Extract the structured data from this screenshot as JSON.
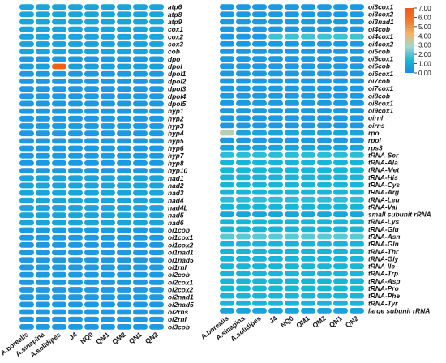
{
  "chart_data": [
    {
      "type": "heatmap",
      "columns": [
        "A.borealis",
        "A.sinapina",
        "A.solidipes",
        "J4",
        "NQ0",
        "QM1",
        "QM2",
        "QN1",
        "QN2"
      ],
      "rows": [
        "atp6",
        "atp8",
        "atp9",
        "cox1",
        "cox2",
        "cox3",
        "cob",
        "dpo",
        "dpol",
        "dpol1",
        "dpol2",
        "dpol3",
        "dpol4",
        "dpol5",
        "hyp1",
        "hyp2",
        "hyp3",
        "hyp4",
        "hyp5",
        "hyp6",
        "hyp7",
        "hyp8",
        "hyp10",
        "nad1",
        "nad2",
        "nad3",
        "nad4",
        "nad4L",
        "nad5",
        "nad6",
        "oi1cob",
        "oi1cox1",
        "oi1cox2",
        "oi1nad1",
        "oi1nad5",
        "oi1rnl",
        "oi2cob",
        "oi2cox1",
        "oi2cox2",
        "oi2nad1",
        "oi2nad5",
        "oi2rns",
        "oi2rnl",
        "oi3cob"
      ],
      "values": [
        [
          0.8,
          0.8,
          0.8,
          0.8,
          0.8,
          0.8,
          0.8,
          0.8,
          0.8
        ],
        [
          0.8,
          0.8,
          0.8,
          0.8,
          0.8,
          0.8,
          0.8,
          0.8,
          0.8
        ],
        [
          0.8,
          0.8,
          0.8,
          0.8,
          0.8,
          0.8,
          0.8,
          0.8,
          0.8
        ],
        [
          0.8,
          0.8,
          0.8,
          0.8,
          0.8,
          0.8,
          0.8,
          0.8,
          0.8
        ],
        [
          0.8,
          0.8,
          0.8,
          0.8,
          0.8,
          0.8,
          0.8,
          0.8,
          0.8
        ],
        [
          0.8,
          0.8,
          0.8,
          0.8,
          0.8,
          0.8,
          0.8,
          0.8,
          0.8
        ],
        [
          0.8,
          0.8,
          0.8,
          0.8,
          0.8,
          0.8,
          0.8,
          0.8,
          0.8
        ],
        [
          0.5,
          0.5,
          0.5,
          0.5,
          0.5,
          0.5,
          0.5,
          0.5,
          0.5
        ],
        [
          0.6,
          0.6,
          6.8,
          0.6,
          0.6,
          0.6,
          0.6,
          0.6,
          0.6
        ],
        [
          0.5,
          0.5,
          0.5,
          0.5,
          0.5,
          0.5,
          0.5,
          0.5,
          0.5
        ],
        [
          0.5,
          0.5,
          0.5,
          0.5,
          0.5,
          0.5,
          0.5,
          0.5,
          0.5
        ],
        [
          0.5,
          0.5,
          0.5,
          0.5,
          0.5,
          0.5,
          0.5,
          0.5,
          0.5
        ],
        [
          0.5,
          0.5,
          0.5,
          0.5,
          0.5,
          0.5,
          0.5,
          0.5,
          0.5
        ],
        [
          0.5,
          0.5,
          0.5,
          0.5,
          0.5,
          0.5,
          0.5,
          0.5,
          0.5
        ],
        [
          0.5,
          0.5,
          0.5,
          0.5,
          0.5,
          0.5,
          0.5,
          0.5,
          0.5
        ],
        [
          0.5,
          0.5,
          0.5,
          0.5,
          0.5,
          0.5,
          0.5,
          0.5,
          0.5
        ],
        [
          0.5,
          0.5,
          0.5,
          0.5,
          0.5,
          0.5,
          0.5,
          0.5,
          0.5
        ],
        [
          0.5,
          0.5,
          0.5,
          0.5,
          0.5,
          0.5,
          0.5,
          0.5,
          0.5
        ],
        [
          0.5,
          0.5,
          0.5,
          0.5,
          0.5,
          0.5,
          0.5,
          0.5,
          0.5
        ],
        [
          0.5,
          0.5,
          0.5,
          0.5,
          0.5,
          0.5,
          0.5,
          0.5,
          0.5
        ],
        [
          0.5,
          0.5,
          0.5,
          0.5,
          0.5,
          0.5,
          0.5,
          0.5,
          0.5
        ],
        [
          0.5,
          0.5,
          0.5,
          0.5,
          0.5,
          0.5,
          0.5,
          0.5,
          0.5
        ],
        [
          0.5,
          0.5,
          0.5,
          0.5,
          0.5,
          0.5,
          0.5,
          0.5,
          0.5
        ],
        [
          0.8,
          0.8,
          0.8,
          0.8,
          0.8,
          0.8,
          0.8,
          0.8,
          0.8
        ],
        [
          0.8,
          0.8,
          0.8,
          0.8,
          0.8,
          0.8,
          0.8,
          0.8,
          0.8
        ],
        [
          0.8,
          0.8,
          0.8,
          0.8,
          0.8,
          0.8,
          0.8,
          0.8,
          0.8
        ],
        [
          0.8,
          0.8,
          0.8,
          0.8,
          0.8,
          0.8,
          0.8,
          0.8,
          0.8
        ],
        [
          0.8,
          0.8,
          0.8,
          0.8,
          0.8,
          0.8,
          0.8,
          0.8,
          0.8
        ],
        [
          0.8,
          0.8,
          0.8,
          0.8,
          0.8,
          0.8,
          0.8,
          0.8,
          0.8
        ],
        [
          0.8,
          0.8,
          0.8,
          0.8,
          0.8,
          0.8,
          0.8,
          0.8,
          0.8
        ],
        [
          0.5,
          0.5,
          0.5,
          0.5,
          0.5,
          0.5,
          0.5,
          0.5,
          0.5
        ],
        [
          0.5,
          0.5,
          0.5,
          0.5,
          0.5,
          0.5,
          0.5,
          0.5,
          0.5
        ],
        [
          0.5,
          0.5,
          0.5,
          0.5,
          0.5,
          0.5,
          0.5,
          0.5,
          0.5
        ],
        [
          0.5,
          0.5,
          0.5,
          0.5,
          0.5,
          0.5,
          0.5,
          0.5,
          0.5
        ],
        [
          0.5,
          0.5,
          0.5,
          0.5,
          0.5,
          0.5,
          0.5,
          0.5,
          0.5
        ],
        [
          0.5,
          0.5,
          0.5,
          0.5,
          0.5,
          0.5,
          0.5,
          0.5,
          0.5
        ],
        [
          0.5,
          0.5,
          0.5,
          0.5,
          0.5,
          0.5,
          0.5,
          0.5,
          0.5
        ],
        [
          0.5,
          0.5,
          0.5,
          0.5,
          0.5,
          0.5,
          0.5,
          0.5,
          0.5
        ],
        [
          0.5,
          0.5,
          0.5,
          0.5,
          0.5,
          0.5,
          0.5,
          0.5,
          0.5
        ],
        [
          0.5,
          0.5,
          0.5,
          0.5,
          0.5,
          0.5,
          0.5,
          0.5,
          0.5
        ],
        [
          0.5,
          0.5,
          0.5,
          0.5,
          0.5,
          0.5,
          0.5,
          0.5,
          0.5
        ],
        [
          0.5,
          0.5,
          0.5,
          0.5,
          0.5,
          0.5,
          0.5,
          0.5,
          0.5
        ],
        [
          0.5,
          0.5,
          0.5,
          0.5,
          0.5,
          0.5,
          0.5,
          0.5,
          0.5
        ],
        [
          0.5,
          0.5,
          0.5,
          0.5,
          0.5,
          0.5,
          0.5,
          0.5,
          0.5
        ]
      ]
    },
    {
      "type": "heatmap",
      "columns": [
        "A.borealis",
        "A.sinapina",
        "A.solidipes",
        "J4",
        "NQ0",
        "QM1",
        "QM2",
        "QN1",
        "QN2"
      ],
      "rows": [
        "oi3cox1",
        "oi3cox2",
        "oi3nad1",
        "oi4cob",
        "oi4cox1",
        "oi4cox2",
        "oi5cob",
        "oi5cox1",
        "oi6cob",
        "oi6cox1",
        "oi7cob",
        "oi7cox1",
        "oi8cob",
        "oi8cox1",
        "oi9cox1",
        "oirnl",
        "oirns",
        "rpo",
        "rpol",
        "rps3",
        "tRNA-Ser",
        "tRNA-Ala",
        "tRNA-Met",
        "tRNA-His",
        "tRNA-Cys",
        "tRNA-Arg",
        "tRNA-Leu",
        "tRNA-Val",
        "small subunit rRNA",
        "tRNA-Lys",
        "tRNA-Glu",
        "tRNA-Asn",
        "tRNA-Gln",
        "tRNA-Thr",
        "tRNA-Gly",
        "tRNA-Ile",
        "tRNA-Trp",
        "tRNA-Asp",
        "tRNA-Pro",
        "tRNA-Phe",
        "tRNA-Tyr",
        "large subunit rRNA"
      ],
      "values": [
        [
          0.5,
          0.5,
          0.5,
          0.5,
          0.5,
          0.5,
          0.5,
          0.5,
          0.5
        ],
        [
          0.5,
          0.5,
          0.5,
          0.5,
          0.5,
          0.5,
          0.5,
          0.5,
          0.5
        ],
        [
          0.5,
          0.5,
          0.5,
          0.5,
          0.5,
          0.5,
          0.5,
          0.5,
          0.5
        ],
        [
          0.5,
          0.5,
          0.5,
          0.5,
          0.5,
          0.5,
          0.5,
          0.5,
          0.5
        ],
        [
          0.5,
          0.5,
          0.5,
          1.8,
          1.8,
          1.8,
          1.8,
          1.8,
          1.8
        ],
        [
          0.5,
          0.5,
          0.5,
          0.5,
          0.5,
          0.5,
          0.5,
          0.5,
          0.5
        ],
        [
          0.5,
          0.5,
          0.5,
          0.5,
          0.5,
          0.5,
          0.5,
          0.5,
          0.5
        ],
        [
          0.5,
          0.5,
          0.5,
          0.5,
          0.5,
          0.5,
          0.5,
          0.5,
          0.5
        ],
        [
          0.5,
          0.5,
          0.5,
          0.5,
          0.5,
          0.5,
          0.5,
          0.5,
          0.5
        ],
        [
          0.5,
          0.5,
          0.5,
          0.5,
          0.5,
          0.5,
          0.5,
          0.5,
          0.5
        ],
        [
          0.5,
          0.5,
          0.5,
          0.5,
          0.5,
          0.5,
          0.5,
          0.5,
          0.5
        ],
        [
          0.5,
          0.5,
          0.5,
          0.5,
          0.5,
          0.5,
          0.5,
          0.5,
          0.5
        ],
        [
          0.5,
          0.5,
          0.5,
          0.5,
          0.5,
          0.5,
          0.5,
          0.5,
          0.5
        ],
        [
          0.5,
          0.5,
          0.5,
          0.5,
          0.5,
          0.5,
          0.5,
          0.5,
          0.5
        ],
        [
          0.5,
          0.5,
          0.5,
          0.5,
          0.5,
          0.5,
          0.5,
          0.5,
          0.5
        ],
        [
          0.5,
          0.5,
          0.5,
          0.5,
          0.5,
          0.5,
          0.5,
          0.5,
          0.5
        ],
        [
          0.5,
          0.5,
          0.5,
          0.5,
          0.5,
          0.5,
          0.5,
          0.5,
          0.5
        ],
        [
          3.2,
          0.8,
          0.8,
          0.8,
          0.8,
          0.8,
          0.8,
          0.8,
          0.8
        ],
        [
          0.5,
          0.5,
          0.5,
          0.5,
          0.5,
          0.5,
          0.5,
          0.5,
          0.5
        ],
        [
          0.8,
          0.8,
          0.8,
          0.8,
          0.8,
          0.8,
          0.8,
          0.8,
          0.8
        ],
        [
          1.6,
          1.6,
          1.6,
          1.6,
          1.6,
          1.6,
          1.6,
          1.6,
          1.6
        ],
        [
          1.3,
          1.3,
          1.3,
          1.3,
          1.3,
          1.3,
          1.3,
          1.3,
          1.3
        ],
        [
          1.3,
          1.3,
          1.3,
          1.3,
          1.3,
          1.3,
          1.3,
          1.3,
          1.3
        ],
        [
          1.3,
          1.3,
          1.3,
          1.3,
          1.3,
          1.3,
          1.3,
          1.3,
          1.3
        ],
        [
          1.3,
          1.3,
          1.3,
          1.3,
          1.3,
          1.3,
          1.3,
          1.3,
          1.3
        ],
        [
          1.3,
          1.3,
          1.3,
          1.3,
          1.3,
          1.3,
          1.3,
          1.3,
          1.3
        ],
        [
          1.6,
          1.6,
          1.6,
          1.6,
          1.6,
          1.6,
          1.6,
          1.6,
          1.6
        ],
        [
          1.3,
          1.3,
          1.3,
          1.3,
          1.3,
          1.3,
          1.3,
          1.3,
          1.3
        ],
        [
          0.8,
          0.8,
          0.8,
          0.8,
          0.8,
          0.8,
          0.8,
          0.8,
          0.8
        ],
        [
          1.3,
          1.3,
          1.3,
          1.3,
          1.3,
          1.3,
          1.3,
          1.3,
          1.3
        ],
        [
          1.3,
          1.3,
          1.3,
          1.3,
          1.3,
          1.3,
          1.3,
          1.3,
          1.3
        ],
        [
          2.1,
          2.1,
          2.1,
          2.1,
          2.1,
          2.1,
          2.1,
          2.1,
          2.1
        ],
        [
          1.3,
          1.3,
          1.3,
          1.3,
          1.3,
          1.3,
          1.3,
          1.3,
          1.3
        ],
        [
          1.3,
          1.3,
          1.3,
          1.3,
          1.3,
          1.3,
          1.3,
          1.3,
          1.3
        ],
        [
          1.3,
          1.3,
          1.3,
          1.3,
          1.3,
          1.3,
          1.3,
          1.3,
          1.3
        ],
        [
          1.3,
          1.3,
          1.3,
          1.3,
          1.3,
          1.3,
          1.3,
          1.3,
          1.3
        ],
        [
          1.3,
          1.3,
          1.3,
          1.3,
          1.3,
          1.3,
          1.3,
          1.3,
          1.3
        ],
        [
          1.3,
          1.3,
          1.3,
          1.3,
          1.3,
          1.3,
          1.3,
          1.3,
          1.3
        ],
        [
          1.3,
          1.3,
          1.3,
          1.3,
          1.3,
          1.3,
          1.3,
          1.3,
          1.3
        ],
        [
          1.3,
          1.3,
          1.3,
          1.3,
          1.3,
          1.3,
          1.3,
          1.3,
          1.3
        ],
        [
          1.3,
          1.3,
          1.3,
          1.3,
          1.3,
          1.3,
          1.3,
          1.3,
          1.3
        ],
        [
          0.8,
          0.8,
          0.8,
          0.8,
          0.8,
          0.8,
          0.8,
          0.8,
          0.8
        ]
      ]
    }
  ],
  "colorbar": {
    "min": 0,
    "max": 7,
    "ticks": [
      "0.00",
      "1.00",
      "2.00",
      "3.00",
      "4.00",
      "5.00",
      "6.00",
      "7.00"
    ],
    "stops": [
      "#1e88e5",
      "#19b8d6",
      "#9fd8cf",
      "#f0b56a",
      "#f07a2a",
      "#ee5a14"
    ]
  }
}
